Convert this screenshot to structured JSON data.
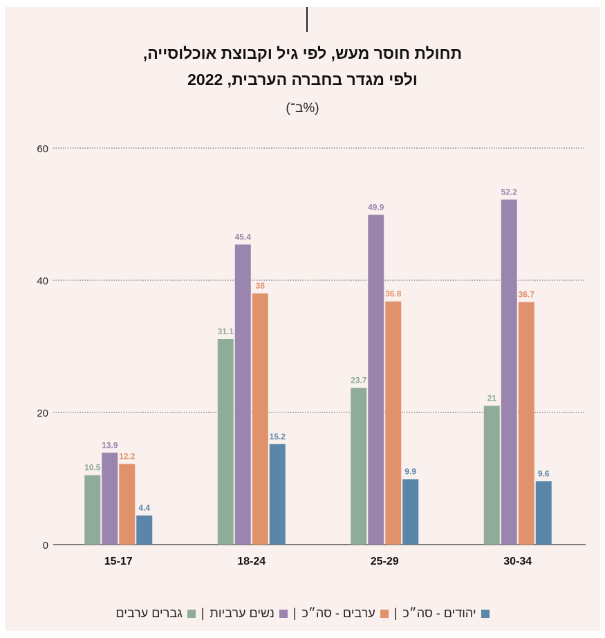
{
  "chart_data": {
    "type": "bar",
    "title_lines": [
      "תחולת חוסר מעש, לפי גיל וקבוצת אוכלוסייה,",
      "ולפי מגדר בחברה הערבית, 2022"
    ],
    "subtitle": "(ב־%)",
    "categories": [
      "15-17",
      "18-24",
      "25-29",
      "30-34"
    ],
    "series": [
      {
        "name": "גברים ערבים",
        "color": "#8fac98",
        "values": [
          10.5,
          31.1,
          23.7,
          21
        ]
      },
      {
        "name": "נשים ערביות | נשים ערביות",
        "color": "#9a85ae",
        "values": [
          13.9,
          45.4,
          49.9,
          52.2
        ]
      },
      {
        "name": "ערבים - סה״כ",
        "color": "#e0936a",
        "values": [
          12.2,
          38,
          36.8,
          36.7
        ]
      },
      {
        "name": "יהודים - סה״כ",
        "color": "#5a86aa",
        "values": [
          4.4,
          15.2,
          9.9,
          9.6
        ]
      }
    ],
    "legend": [
      {
        "label": "יהודים - סה״כ",
        "color": "#5a86aa"
      },
      {
        "label": "ערבים - סה״כ",
        "color": "#e0936a"
      },
      {
        "label": "נשים ערביות",
        "color": "#9a85ae"
      },
      {
        "label": "גברים ערבים",
        "color": "#8fac98"
      }
    ],
    "y_ticks": [
      "0",
      "20",
      "40",
      "60"
    ],
    "ylim": [
      0,
      60
    ],
    "grid": true,
    "legend_placement": "bottom"
  }
}
